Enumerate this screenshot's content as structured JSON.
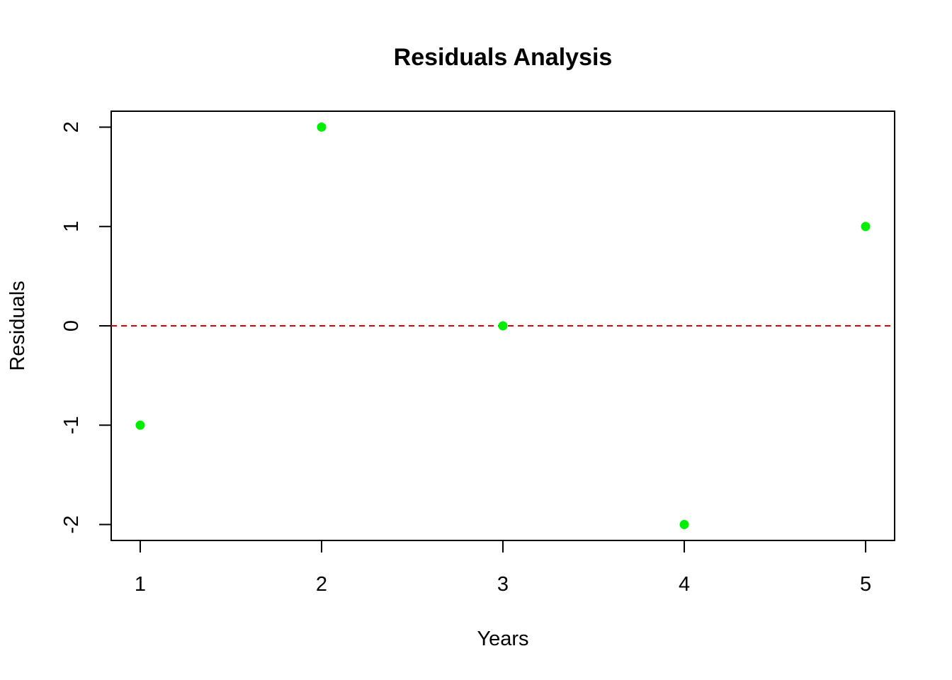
{
  "chart_data": {
    "type": "scatter",
    "title": "Residuals Analysis",
    "xlabel": "Years",
    "ylabel": "Residuals",
    "x": [
      1,
      2,
      3,
      4,
      5
    ],
    "y": [
      -1,
      2,
      0,
      -2,
      1
    ],
    "xlim": [
      0.84,
      5.16
    ],
    "ylim": [
      -2.16,
      2.16
    ],
    "x_ticks": [
      1,
      2,
      3,
      4,
      5
    ],
    "x_tick_labels": [
      "1",
      "2",
      "3",
      "4",
      "5"
    ],
    "y_ticks": [
      -2,
      -1,
      0,
      1,
      2
    ],
    "y_tick_labels": [
      "-2",
      "-1",
      "0",
      "1",
      "2"
    ],
    "reference_line": {
      "y": 0,
      "style": "dashed",
      "color": "#dd0000"
    },
    "point_color": "#00ee00",
    "grid": false,
    "legend": "none"
  }
}
